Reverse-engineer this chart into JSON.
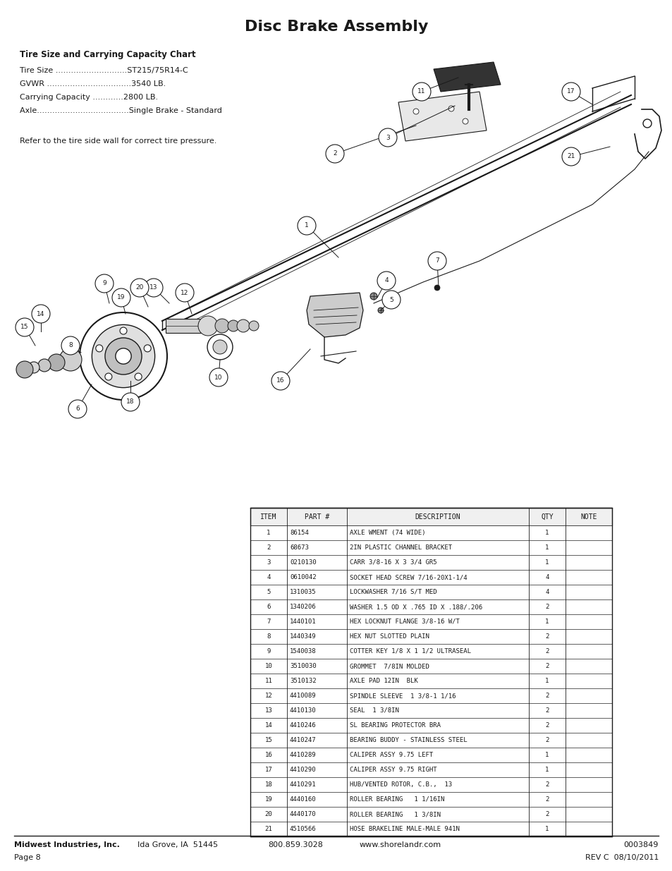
{
  "title": "Disc Brake Assembly",
  "title_fontsize": 16,
  "capacity_chart_title": "Tire Size and Carrying Capacity Chart",
  "capacity_lines": [
    "Tire Size ............................ST215/75R14-C",
    "GVWR .................................3540 LB.",
    "Carrying Capacity ............2800 LB.",
    "Axle....................................Single Brake - Standard"
  ],
  "refer_text": "Refer to the tire side wall for correct tire pressure.",
  "table_headers": [
    "ITEM",
    "PART #",
    "DESCRIPTION",
    "QTY",
    "NOTE"
  ],
  "table_rows": [
    [
      "1",
      "86154",
      "AXLE WMENT (74 WIDE)",
      "1",
      ""
    ],
    [
      "2",
      "68673",
      "2IN PLASTIC CHANNEL BRACKET",
      "1",
      ""
    ],
    [
      "3",
      "0210130",
      "CARR 3/8-16 X 3 3/4 GR5",
      "1",
      ""
    ],
    [
      "4",
      "0610042",
      "SOCKET HEAD SCREW 7/16-20X1-1/4",
      "4",
      ""
    ],
    [
      "5",
      "1310035",
      "LOCKWASHER 7/16 S/T MED",
      "4",
      ""
    ],
    [
      "6",
      "1340206",
      "WASHER 1.5 OD X .765 ID X .188/.206",
      "2",
      ""
    ],
    [
      "7",
      "1440101",
      "HEX LOCKNUT FLANGE 3/8-16 W/T",
      "1",
      ""
    ],
    [
      "8",
      "1440349",
      "HEX NUT SLOTTED PLAIN",
      "2",
      ""
    ],
    [
      "9",
      "1540038",
      "COTTER KEY 1/8 X 1 1/2 ULTRASEAL",
      "2",
      ""
    ],
    [
      "10",
      "3510030",
      "GROMMET  7/8IN MOLDED",
      "2",
      ""
    ],
    [
      "11",
      "3510132",
      "AXLE PAD 12IN  BLK",
      "1",
      ""
    ],
    [
      "12",
      "4410089",
      "SPINDLE SLEEVE  1 3/8-1 1/16",
      "2",
      ""
    ],
    [
      "13",
      "4410130",
      "SEAL  1 3/8IN",
      "2",
      ""
    ],
    [
      "14",
      "4410246",
      "SL BEARING PROTECTOR BRA",
      "2",
      ""
    ],
    [
      "15",
      "4410247",
      "BEARING BUDDY - STAINLESS STEEL",
      "2",
      ""
    ],
    [
      "16",
      "4410289",
      "CALIPER ASSY 9.75 LEFT",
      "1",
      ""
    ],
    [
      "17",
      "4410290",
      "CALIPER ASSY 9.75 RIGHT",
      "1",
      ""
    ],
    [
      "18",
      "4410291",
      "HUB/VENTED ROTOR, C.B.,  13",
      "2",
      ""
    ],
    [
      "19",
      "4440160",
      "ROLLER BEARING   1 1/16IN",
      "2",
      ""
    ],
    [
      "20",
      "4440170",
      "ROLLER BEARING   1 3/8IN",
      "2",
      ""
    ],
    [
      "21",
      "4510566",
      "HOSE BRAKELINE MALE-MALE 941N",
      "1",
      ""
    ]
  ],
  "footer_company": "Midwest Industries, Inc.",
  "footer_city": "Ida Grove, IA  51445",
  "footer_phone": "800.859.3028",
  "footer_web": "www.shorelandr.com",
  "footer_part": "0003849",
  "footer_rev": "REV C  08/10/2011",
  "footer_page": "Page 8",
  "bg_color": "#ffffff",
  "lc": "#1a1a1a"
}
